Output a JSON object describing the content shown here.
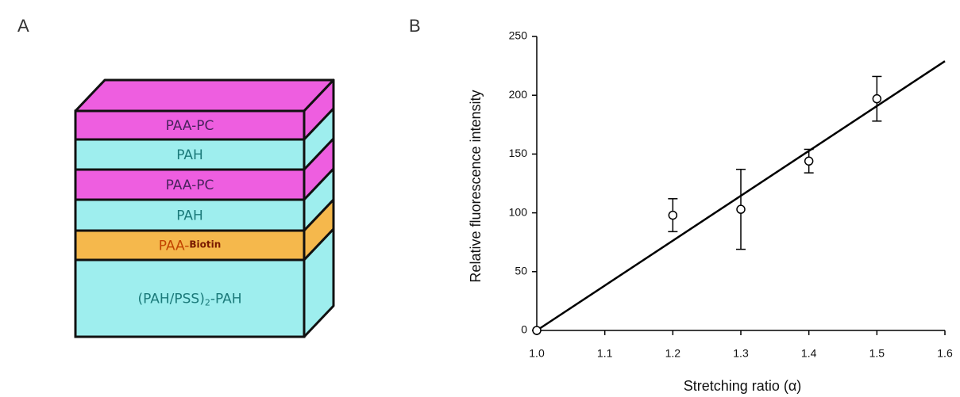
{
  "panel_labels": [
    "A",
    "B"
  ],
  "diagram": {
    "layers": [
      {
        "label": "PAA-PC",
        "color": "#ee5ee0",
        "text_color": "#4a235e"
      },
      {
        "label": "PAH",
        "color": "#9eeeee",
        "text_color": "#1b7a7a"
      },
      {
        "label": "PAA-PC",
        "color": "#ee5ee0",
        "text_color": "#4a235e"
      },
      {
        "label": "PAH",
        "color": "#9eeeee",
        "text_color": "#1b7a7a"
      },
      {
        "label": "PAA-",
        "suffix": "Biotin",
        "color": "#f5b84c",
        "text_color": "#c24400"
      },
      {
        "label": "(PAH/PSS)",
        "subscript": "2",
        "suffix": "-PAH",
        "color": "#9eeeee",
        "text_color": "#1b7a7a"
      }
    ]
  },
  "chart_data": {
    "type": "scatter",
    "xlabel": "Stretching ratio (α)",
    "ylabel": "Relative fluorescence intensity",
    "x": [
      1.0,
      1.2,
      1.3,
      1.4,
      1.5
    ],
    "values": [
      0,
      98,
      103,
      144,
      197
    ],
    "errors": [
      0,
      14,
      34,
      10,
      19
    ],
    "fit": {
      "x": [
        1.0,
        1.6
      ],
      "values": [
        0,
        229
      ]
    },
    "color": "#000000",
    "xlim": [
      1.0,
      1.6
    ],
    "xticks": [
      {
        "value": 1,
        "label": "1.0"
      },
      1.1,
      1.2,
      1.3,
      1.4,
      1.5,
      1.6
    ],
    "ylim": [
      0,
      250
    ],
    "yticks": [
      0,
      50,
      100,
      150,
      200,
      250
    ],
    "grid": false
  }
}
